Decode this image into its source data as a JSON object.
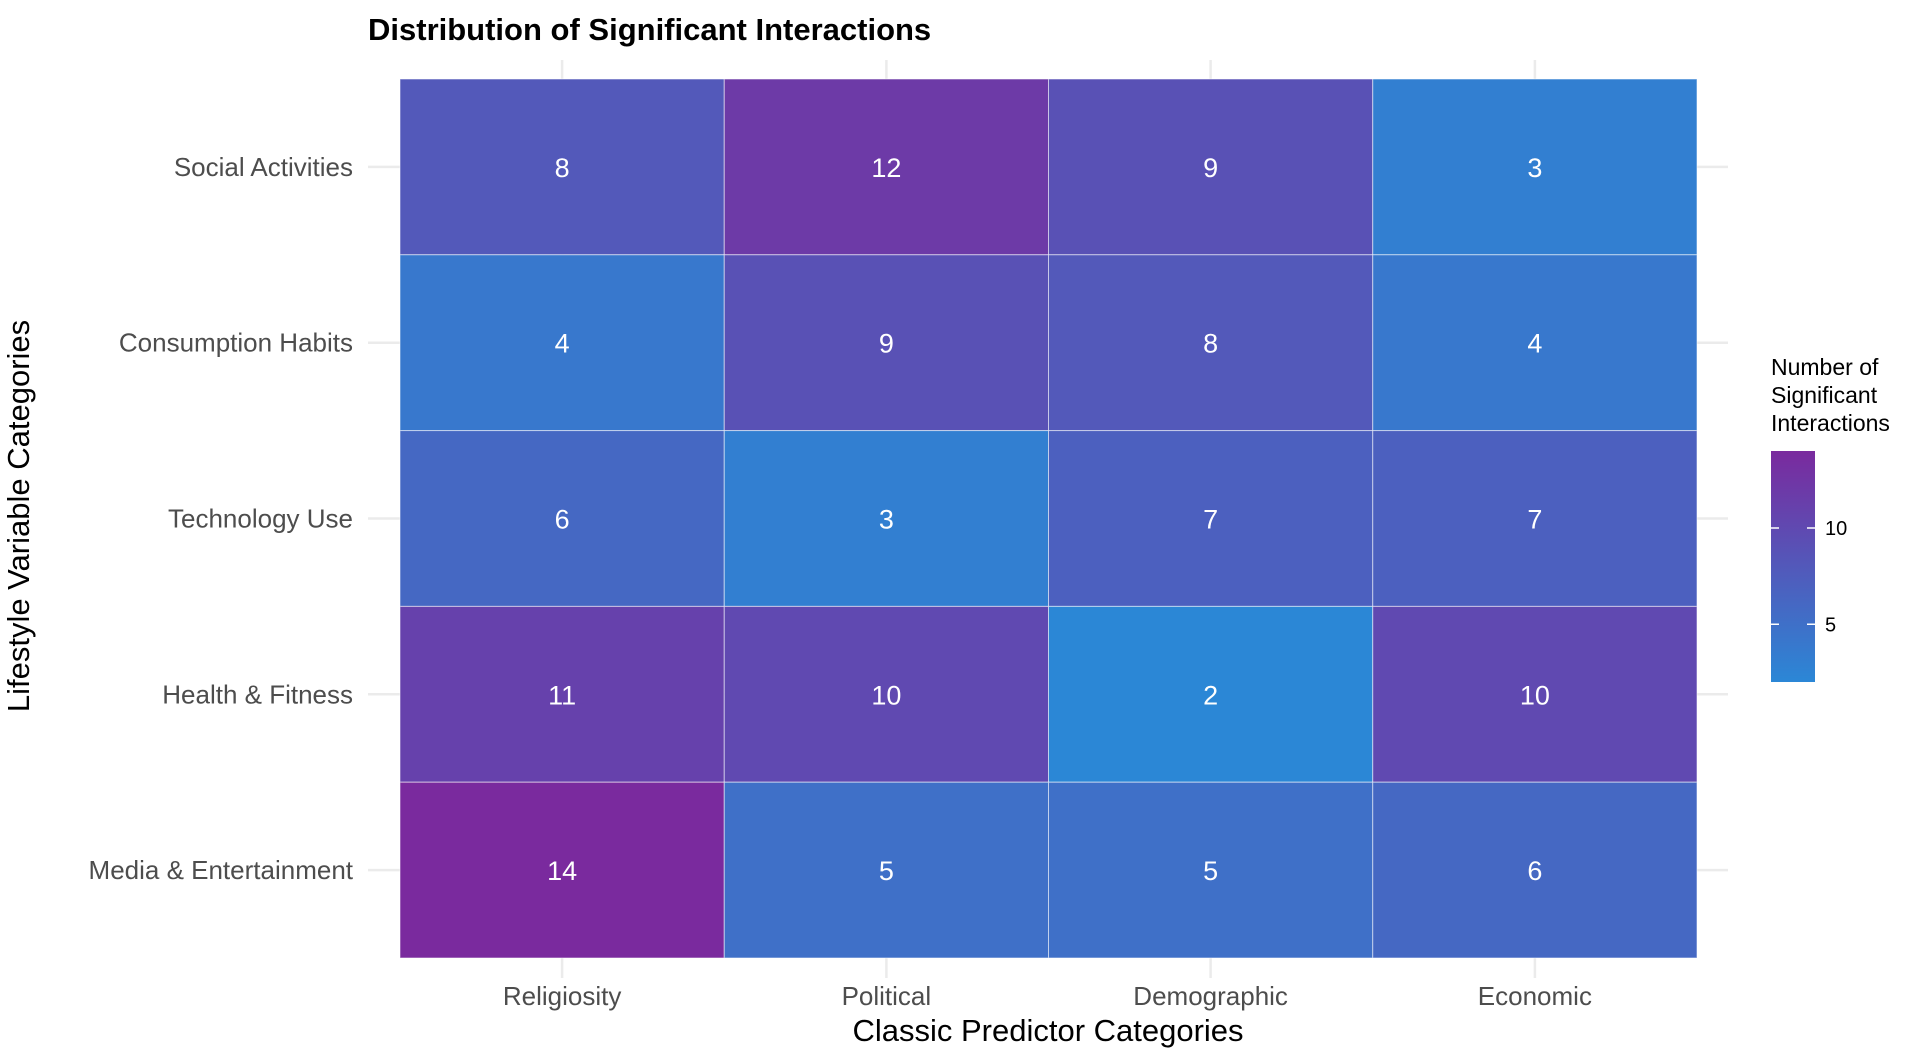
{
  "chart_data": {
    "type": "heatmap",
    "title": "Distribution of Significant Interactions",
    "xlabel": "Classic Predictor Categories",
    "ylabel": "Lifestyle Variable Categories",
    "x_categories": [
      "Religiosity",
      "Political",
      "Demographic",
      "Economic"
    ],
    "y_categories": [
      "Social Activities",
      "Consumption Habits",
      "Technology Use",
      "Health & Fitness",
      "Media & Entertainment"
    ],
    "values": [
      [
        8,
        12,
        9,
        3
      ],
      [
        4,
        9,
        8,
        4
      ],
      [
        6,
        3,
        7,
        7
      ],
      [
        11,
        10,
        2,
        10
      ],
      [
        14,
        5,
        5,
        6
      ]
    ],
    "legend": {
      "title": [
        "Number of",
        "Significant",
        "Interactions"
      ],
      "ticks": [
        5,
        10
      ],
      "range": [
        2,
        14
      ],
      "placement": "right"
    },
    "colors": {
      "low": "#2b87d6",
      "high": "#7a2a9e",
      "cell_border": "#ffffff"
    },
    "grid": true
  }
}
